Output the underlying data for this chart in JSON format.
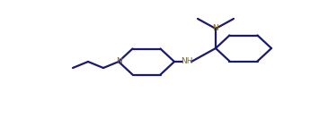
{
  "line_color": "#1a1a6e",
  "n_color": "#8B6914",
  "bg_color": "#ffffff",
  "lw": 1.6,
  "figsize": [
    3.55,
    1.41
  ],
  "dpi": 100,
  "xlim": [
    0,
    35.5
  ],
  "ylim": [
    0,
    14.1
  ]
}
